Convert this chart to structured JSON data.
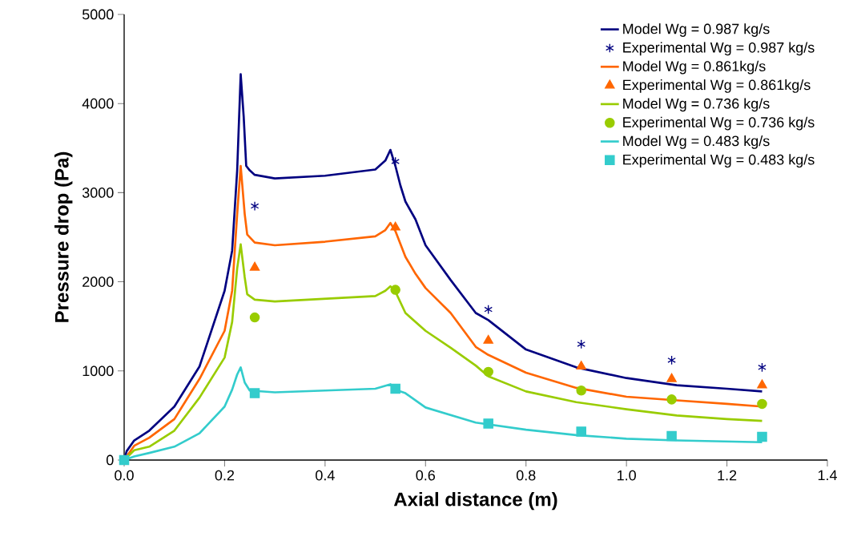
{
  "chart_data": {
    "type": "line",
    "xlabel": "Axial distance (m)",
    "ylabel": "Pressure drop (Pa)",
    "xlim": [
      0,
      1.4
    ],
    "ylim": [
      0,
      5000
    ],
    "xticks": [
      {
        "value": 0,
        "label": "0.0"
      },
      0.2,
      0.4,
      0.6,
      0.8,
      {
        "value": 1,
        "label": "1.0"
      },
      1.2,
      1.4
    ],
    "yticks": [
      0,
      1000,
      2000,
      3000,
      4000,
      5000
    ],
    "grid": false,
    "legend": "top right",
    "series": [
      {
        "name": "Model Wg = 0.987 kg/s",
        "marker": "none",
        "color": "#000080",
        "x": [
          0,
          0.005,
          0.02,
          0.05,
          0.1,
          0.15,
          0.2,
          0.215,
          0.225,
          0.232,
          0.238,
          0.243,
          0.25,
          0.26,
          0.3,
          0.4,
          0.5,
          0.52,
          0.53,
          0.54,
          0.55,
          0.56,
          0.58,
          0.6,
          0.65,
          0.7,
          0.725,
          0.8,
          0.9,
          1.0,
          1.1,
          1.2,
          1.27
        ],
        "values": [
          0,
          100,
          220,
          330,
          600,
          1050,
          1900,
          2350,
          3250,
          4330,
          3850,
          3300,
          3250,
          3200,
          3160,
          3190,
          3260,
          3360,
          3480,
          3300,
          3080,
          2900,
          2700,
          2410,
          2020,
          1650,
          1570,
          1240,
          1040,
          920,
          840,
          800,
          770
        ]
      },
      {
        "name": "Experimental Wg = 0.987 kg/s",
        "type": "scatter",
        "marker": "cross",
        "color": "#000080",
        "x": [
          0.26,
          0.54,
          0.725,
          0.91,
          1.09,
          1.27
        ],
        "values": [
          2850,
          3350,
          1690,
          1300,
          1120,
          1040
        ]
      },
      {
        "name": "Model Wg = 0.861kg/s",
        "marker": "none",
        "color": "#ff6600",
        "x": [
          0,
          0.02,
          0.05,
          0.1,
          0.15,
          0.2,
          0.215,
          0.225,
          0.232,
          0.24,
          0.245,
          0.26,
          0.3,
          0.4,
          0.5,
          0.52,
          0.53,
          0.54,
          0.56,
          0.58,
          0.6,
          0.65,
          0.7,
          0.725,
          0.8,
          0.9,
          1.0,
          1.1,
          1.2,
          1.27
        ],
        "values": [
          0,
          160,
          250,
          460,
          910,
          1450,
          1900,
          2760,
          3300,
          2760,
          2530,
          2440,
          2410,
          2450,
          2510,
          2580,
          2660,
          2570,
          2280,
          2090,
          1930,
          1650,
          1270,
          1180,
          980,
          810,
          710,
          670,
          630,
          600
        ]
      },
      {
        "name": "Experimental Wg = 0.861kg/s",
        "type": "scatter",
        "marker": "triangle",
        "color": "#ff6600",
        "x": [
          0.26,
          0.54,
          0.725,
          0.91,
          1.09,
          1.27
        ],
        "values": [
          2160,
          2610,
          1340,
          1050,
          910,
          840
        ]
      },
      {
        "name": "Model Wg = 0.736 kg/s",
        "marker": "none",
        "color": "#99cc00",
        "x": [
          0,
          0.02,
          0.05,
          0.1,
          0.15,
          0.2,
          0.215,
          0.225,
          0.232,
          0.24,
          0.245,
          0.26,
          0.3,
          0.5,
          0.52,
          0.53,
          0.54,
          0.56,
          0.6,
          0.65,
          0.7,
          0.725,
          0.8,
          0.9,
          1.0,
          1.1,
          1.2,
          1.27
        ],
        "values": [
          0,
          110,
          150,
          330,
          700,
          1150,
          1550,
          2150,
          2420,
          2050,
          1860,
          1800,
          1780,
          1840,
          1900,
          1950,
          1890,
          1650,
          1450,
          1260,
          1060,
          940,
          770,
          650,
          570,
          500,
          460,
          440
        ]
      },
      {
        "name": "Experimental Wg = 0.736 kg/s",
        "type": "scatter",
        "marker": "circle",
        "color": "#99cc00",
        "x": [
          0.26,
          0.54,
          0.725,
          0.91,
          1.09,
          1.27
        ],
        "values": [
          1600,
          1910,
          990,
          780,
          680,
          630
        ]
      },
      {
        "name": "Model Wg = 0.483 kg/s",
        "marker": "none",
        "color": "#33cccc",
        "x": [
          0,
          0.02,
          0.05,
          0.1,
          0.15,
          0.2,
          0.215,
          0.225,
          0.232,
          0.24,
          0.25,
          0.3,
          0.5,
          0.53,
          0.54,
          0.56,
          0.6,
          0.7,
          0.8,
          0.9,
          1.0,
          1.1,
          1.27
        ],
        "values": [
          0,
          40,
          80,
          150,
          300,
          600,
          790,
          960,
          1040,
          870,
          780,
          760,
          800,
          850,
          790,
          750,
          590,
          420,
          340,
          280,
          240,
          220,
          200
        ]
      },
      {
        "name": "Experimental Wg = 0.483 kg/s",
        "type": "scatter",
        "marker": "square",
        "color": "#33cccc",
        "x": [
          0,
          0.26,
          0.54,
          0.725,
          0.91,
          1.09,
          1.27
        ],
        "values": [
          0,
          750,
          800,
          410,
          320,
          270,
          260
        ]
      }
    ]
  }
}
